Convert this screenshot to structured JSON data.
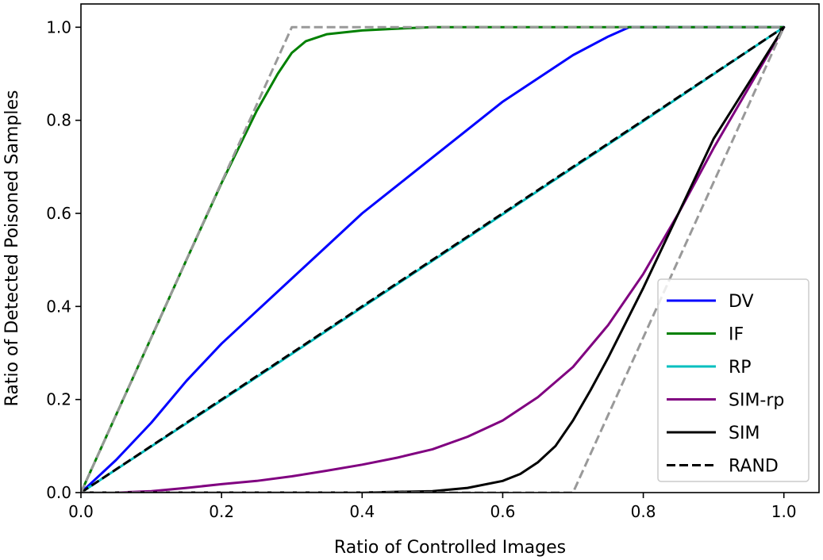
{
  "chart_data": {
    "type": "line",
    "title": "",
    "xlabel": "Ratio of Controlled Images",
    "ylabel": "Ratio of Detected Poisoned Samples",
    "xlim": [
      0.0,
      1.05
    ],
    "ylim": [
      0.0,
      1.05
    ],
    "xticks": [
      0.0,
      0.2,
      0.4,
      0.6,
      0.8,
      1.0
    ],
    "yticks": [
      0.0,
      0.2,
      0.4,
      0.6,
      0.8,
      1.0
    ],
    "xtick_labels": [
      "0.0",
      "0.2",
      "0.4",
      "0.6",
      "0.8",
      "1.0"
    ],
    "ytick_labels": [
      "0.0",
      "0.2",
      "0.4",
      "0.6",
      "0.8",
      "1.0"
    ],
    "grid": false,
    "legend_position": "lower right",
    "series": [
      {
        "name": "DV",
        "color": "#0000ff",
        "style": "solid",
        "x": [
          0.0,
          0.05,
          0.1,
          0.15,
          0.2,
          0.25,
          0.3,
          0.35,
          0.4,
          0.45,
          0.5,
          0.55,
          0.6,
          0.65,
          0.7,
          0.75,
          0.78,
          1.0
        ],
        "y": [
          0.0,
          0.07,
          0.15,
          0.24,
          0.32,
          0.39,
          0.46,
          0.53,
          0.6,
          0.66,
          0.72,
          0.78,
          0.84,
          0.89,
          0.94,
          0.98,
          1.0,
          1.0
        ]
      },
      {
        "name": "IF",
        "color": "#008000",
        "style": "solid",
        "x": [
          0.0,
          0.05,
          0.1,
          0.15,
          0.2,
          0.25,
          0.28,
          0.3,
          0.32,
          0.35,
          0.4,
          0.45,
          0.5,
          0.6,
          0.8,
          1.0
        ],
        "y": [
          0.0,
          0.167,
          0.333,
          0.5,
          0.665,
          0.82,
          0.9,
          0.945,
          0.97,
          0.985,
          0.993,
          0.997,
          1.0,
          1.0,
          1.0,
          1.0
        ]
      },
      {
        "name": "RP",
        "color": "#00bfbf",
        "style": "solid",
        "x": [
          0.0,
          0.2,
          0.4,
          0.6,
          0.8,
          1.0
        ],
        "y": [
          0.0,
          0.198,
          0.398,
          0.598,
          0.798,
          1.0
        ]
      },
      {
        "name": "SIM-rp",
        "color": "#800080",
        "style": "solid",
        "x": [
          0.0,
          0.05,
          0.1,
          0.15,
          0.2,
          0.25,
          0.3,
          0.35,
          0.4,
          0.45,
          0.5,
          0.55,
          0.6,
          0.65,
          0.7,
          0.75,
          0.8,
          0.85,
          0.9,
          0.95,
          1.0
        ],
        "y": [
          0.0,
          0.0,
          0.003,
          0.01,
          0.018,
          0.025,
          0.035,
          0.047,
          0.06,
          0.075,
          0.093,
          0.12,
          0.155,
          0.205,
          0.27,
          0.36,
          0.47,
          0.6,
          0.74,
          0.87,
          1.0
        ]
      },
      {
        "name": "SIM",
        "color": "#000000",
        "style": "solid",
        "x": [
          0.0,
          0.4,
          0.5,
          0.55,
          0.6,
          0.625,
          0.65,
          0.675,
          0.7,
          0.725,
          0.75,
          0.8,
          0.85,
          0.9,
          0.95,
          1.0
        ],
        "y": [
          0.0,
          0.0,
          0.003,
          0.01,
          0.025,
          0.04,
          0.065,
          0.1,
          0.155,
          0.22,
          0.29,
          0.44,
          0.6,
          0.76,
          0.88,
          1.0
        ]
      },
      {
        "name": "RAND",
        "color": "#000000",
        "style": "dashed",
        "x": [
          0.0,
          0.2,
          0.4,
          0.6,
          0.8,
          1.0
        ],
        "y": [
          0.0,
          0.2,
          0.4,
          0.6,
          0.8,
          1.0
        ]
      }
    ],
    "reference_lines": [
      {
        "color": "#999999",
        "style": "dashed",
        "x": [
          0.0,
          0.3,
          1.0
        ],
        "y": [
          0.0,
          1.0,
          1.0
        ]
      },
      {
        "color": "#999999",
        "style": "dashed",
        "x": [
          0.0,
          0.7,
          1.0
        ],
        "y": [
          0.0,
          0.0,
          1.0
        ]
      }
    ]
  }
}
